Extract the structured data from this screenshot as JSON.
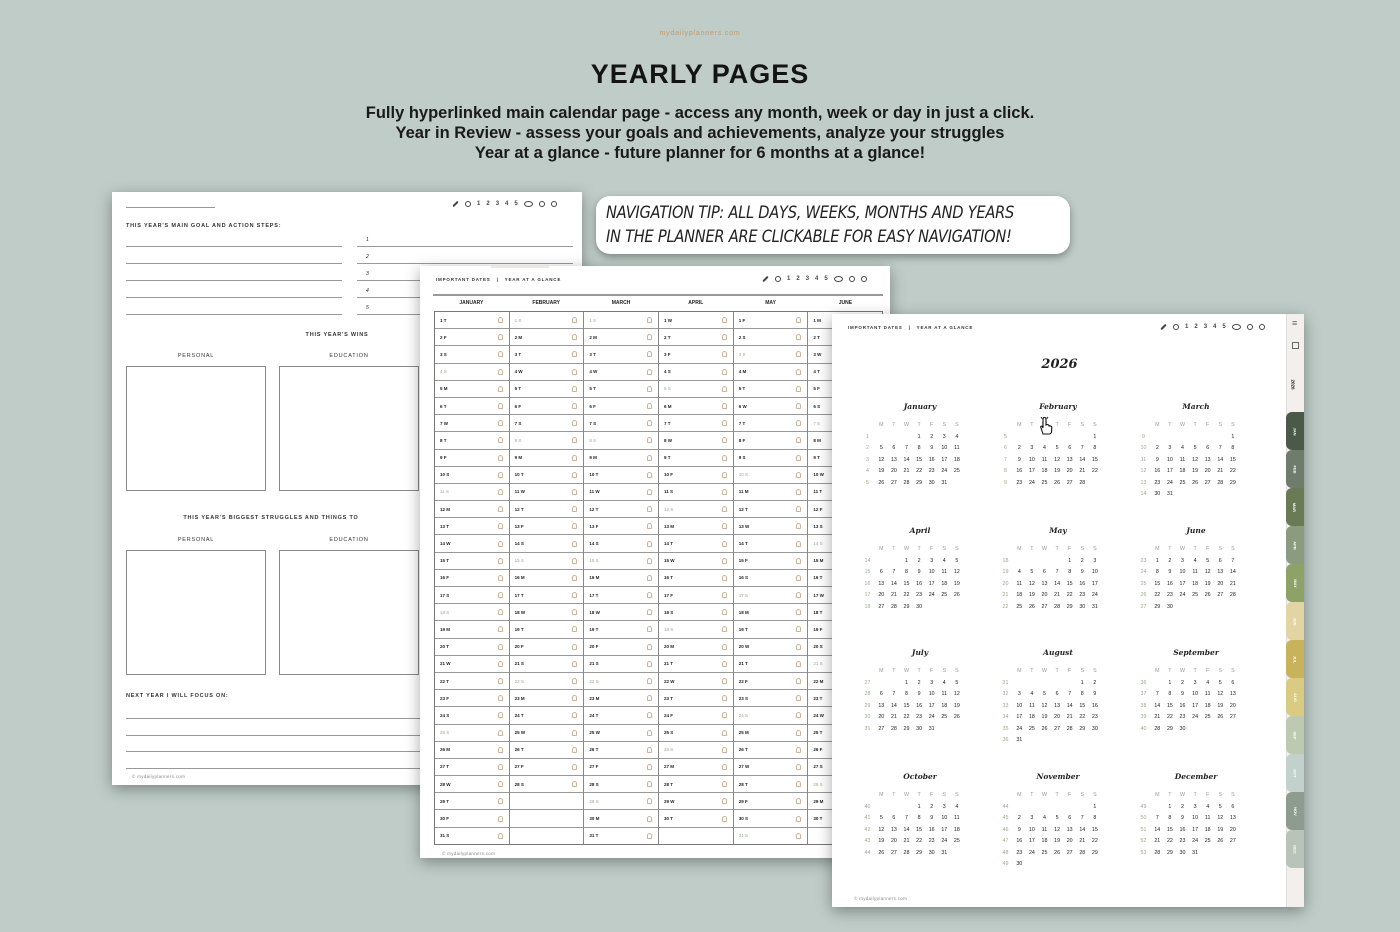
{
  "watermark": "mydailyplanners.com",
  "title": "YEARLY PAGES",
  "subtitle_lines": [
    "Fully hyperlinked main calendar page - access any month, week or day in just a click.",
    "Year in Review - assess your goals and achievements, analyze your struggles",
    "Year at a glance - future planner for 6 months at a glance!"
  ],
  "tip": {
    "line1": "NAVIGATION TIP: ALL DAYS, WEEKS, MONTHS AND YEARS",
    "line2": "IN THE PLANNER ARE CLICKABLE FOR EASY  NAVIGATION!"
  },
  "nav_numbers": [
    "1",
    "2",
    "3",
    "4",
    "5"
  ],
  "nav_icons": [
    "pencil-icon",
    "check-circle-icon",
    "eye-icon",
    "gear-icon",
    "info-icon"
  ],
  "footer": "© mydailyplanners.com",
  "review_page": {
    "goal_heading": "THIS YEAR'S MAIN GOAL AND ACTION STEPS:",
    "steps": [
      "1",
      "2",
      "3",
      "4",
      "5"
    ],
    "wins_heading": "THIS YEAR'S WINS",
    "personal": "PERSONAL",
    "education": "EDUCATION",
    "struggles_heading": "THIS YEAR'S BIGGEST STRUGGLES AND THINGS TO",
    "focus_heading": "NEXT YEAR I WILL FOCUS ON:"
  },
  "dates_page": {
    "breadcrumb": [
      "IMPORTANT DATES",
      "|",
      "YEAR AT A GLANCE"
    ],
    "columns": [
      {
        "month": "JANUARY",
        "days": [
          "1 T",
          "2 F",
          "3 S",
          "4 S",
          "5 M",
          "6 T",
          "7 W",
          "8 T",
          "9 F",
          "10 S",
          "11 S",
          "12 M",
          "13 T",
          "14 W",
          "15 T",
          "16 F",
          "17 S",
          "18 S",
          "19 M",
          "20 T",
          "21 W",
          "22 T",
          "23 F",
          "24 S",
          "25 S",
          "26 M",
          "27 T",
          "28 W",
          "29 T",
          "30 F",
          "31 S"
        ]
      },
      {
        "month": "FEBRUARY",
        "days": [
          "1 S",
          "2 M",
          "3 T",
          "4 W",
          "5 T",
          "6 F",
          "7 S",
          "8 S",
          "9 M",
          "10 T",
          "11 W",
          "12 T",
          "13 F",
          "14 S",
          "15 S",
          "16 M",
          "17 T",
          "18 W",
          "19 T",
          "20 F",
          "21 S",
          "22 S",
          "23 M",
          "24 T",
          "25 W",
          "26 T",
          "27 F",
          "28 S"
        ]
      },
      {
        "month": "MARCH",
        "days": [
          "1 S",
          "2 M",
          "3 T",
          "4 W",
          "5 T",
          "6 F",
          "7 S",
          "8 S",
          "9 M",
          "10 T",
          "11 W",
          "12 T",
          "13 F",
          "14 S",
          "15 S",
          "16 M",
          "17 T",
          "18 W",
          "19 T",
          "20 F",
          "21 S",
          "22 S",
          "23 M",
          "24 T",
          "25 W",
          "26 T",
          "27 F",
          "28 S",
          "29 S",
          "30 M",
          "31 T"
        ]
      },
      {
        "month": "APRIL",
        "days": [
          "1 W",
          "2 T",
          "3 F",
          "4 S",
          "5 S",
          "6 M",
          "7 T",
          "8 W",
          "9 T",
          "10 F",
          "11 S",
          "12 S",
          "13 M",
          "14 T",
          "15 W",
          "16 T",
          "17 F",
          "18 S",
          "19 S",
          "20 M",
          "21 T",
          "22 W",
          "23 T",
          "24 F",
          "25 S",
          "26 S",
          "27 M",
          "28 T",
          "29 W",
          "30 T"
        ]
      },
      {
        "month": "MAY",
        "days": [
          "1 F",
          "2 S",
          "3 S",
          "4 M",
          "5 T",
          "6 W",
          "7 T",
          "8 F",
          "9 S",
          "10 S",
          "11 M",
          "12 T",
          "13 W",
          "14 T",
          "15 F",
          "16 S",
          "17 S",
          "18 M",
          "19 T",
          "20 W",
          "21 T",
          "22 F",
          "23 S",
          "24 S",
          "25 M",
          "26 T",
          "27 W",
          "28 T",
          "29 F",
          "30 S",
          "31 S"
        ]
      },
      {
        "month": "JUNE",
        "days": [
          "1 M",
          "2 T",
          "3 W",
          "4 T",
          "5 F",
          "6 S",
          "7 S",
          "8 M",
          "9 T",
          "10 W",
          "11 T",
          "12 F",
          "13 S",
          "14 S",
          "15 M",
          "16 T",
          "17 W",
          "18 T",
          "19 F",
          "20 S",
          "21 S",
          "22 M",
          "23 T",
          "24 W",
          "25 T",
          "26 F",
          "27 S",
          "28 S",
          "29 M",
          "30 T"
        ]
      }
    ]
  },
  "glance_page": {
    "breadcrumb": [
      "IMPORTANT DATES",
      "|",
      "YEAR AT A GLANCE"
    ],
    "year": "2026",
    "weekday_labels": [
      "M",
      "T",
      "W",
      "T",
      "F",
      "S",
      "S"
    ],
    "months": [
      {
        "name": "January",
        "weeks": [
          [
            "1",
            "",
            "",
            "",
            "1",
            "2",
            "3",
            "4"
          ],
          [
            "2",
            "5",
            "6",
            "7",
            "8",
            "9",
            "10",
            "11"
          ],
          [
            "3",
            "12",
            "13",
            "14",
            "15",
            "16",
            "17",
            "18"
          ],
          [
            "4",
            "19",
            "20",
            "21",
            "22",
            "23",
            "24",
            "25"
          ],
          [
            "5",
            "26",
            "27",
            "28",
            "29",
            "30",
            "31",
            ""
          ]
        ]
      },
      {
        "name": "February",
        "weeks": [
          [
            "5",
            "",
            "",
            "",
            "",
            "",
            "",
            "1"
          ],
          [
            "6",
            "2",
            "3",
            "4",
            "5",
            "6",
            "7",
            "8"
          ],
          [
            "7",
            "9",
            "10",
            "11",
            "12",
            "13",
            "14",
            "15"
          ],
          [
            "8",
            "16",
            "17",
            "18",
            "19",
            "20",
            "21",
            "22"
          ],
          [
            "9",
            "23",
            "24",
            "25",
            "26",
            "27",
            "28",
            ""
          ]
        ]
      },
      {
        "name": "March",
        "weeks": [
          [
            "9",
            "",
            "",
            "",
            "",
            "",
            "",
            "1"
          ],
          [
            "10",
            "2",
            "3",
            "4",
            "5",
            "6",
            "7",
            "8"
          ],
          [
            "11",
            "9",
            "10",
            "11",
            "12",
            "13",
            "14",
            "15"
          ],
          [
            "12",
            "16",
            "17",
            "18",
            "19",
            "20",
            "21",
            "22"
          ],
          [
            "13",
            "23",
            "24",
            "25",
            "26",
            "27",
            "28",
            "29"
          ],
          [
            "14",
            "30",
            "31",
            "",
            "",
            "",
            "",
            ""
          ]
        ]
      },
      {
        "name": "April",
        "weeks": [
          [
            "14",
            "",
            "",
            "1",
            "2",
            "3",
            "4",
            "5"
          ],
          [
            "15",
            "6",
            "7",
            "8",
            "9",
            "10",
            "11",
            "12"
          ],
          [
            "16",
            "13",
            "14",
            "15",
            "16",
            "17",
            "18",
            "19"
          ],
          [
            "17",
            "20",
            "21",
            "22",
            "23",
            "24",
            "25",
            "26"
          ],
          [
            "18",
            "27",
            "28",
            "29",
            "30",
            "",
            "",
            ""
          ]
        ]
      },
      {
        "name": "May",
        "weeks": [
          [
            "18",
            "",
            "",
            "",
            "",
            "1",
            "2",
            "3"
          ],
          [
            "19",
            "4",
            "5",
            "6",
            "7",
            "8",
            "9",
            "10"
          ],
          [
            "20",
            "11",
            "12",
            "13",
            "14",
            "15",
            "16",
            "17"
          ],
          [
            "21",
            "18",
            "19",
            "20",
            "21",
            "22",
            "23",
            "24"
          ],
          [
            "22",
            "25",
            "26",
            "27",
            "28",
            "29",
            "30",
            "31"
          ]
        ]
      },
      {
        "name": "June",
        "weeks": [
          [
            "23",
            "1",
            "2",
            "3",
            "4",
            "5",
            "6",
            "7"
          ],
          [
            "24",
            "8",
            "9",
            "10",
            "11",
            "12",
            "13",
            "14"
          ],
          [
            "25",
            "15",
            "16",
            "17",
            "18",
            "19",
            "20",
            "21"
          ],
          [
            "26",
            "22",
            "23",
            "24",
            "25",
            "26",
            "27",
            "28"
          ],
          [
            "27",
            "29",
            "30",
            "",
            "",
            "",
            "",
            ""
          ]
        ]
      },
      {
        "name": "July",
        "weeks": [
          [
            "27",
            "",
            "",
            "1",
            "2",
            "3",
            "4",
            "5"
          ],
          [
            "28",
            "6",
            "7",
            "8",
            "9",
            "10",
            "11",
            "12"
          ],
          [
            "29",
            "13",
            "14",
            "15",
            "16",
            "17",
            "18",
            "19"
          ],
          [
            "30",
            "20",
            "21",
            "22",
            "23",
            "24",
            "25",
            "26"
          ],
          [
            "31",
            "27",
            "28",
            "29",
            "30",
            "31",
            "",
            ""
          ]
        ]
      },
      {
        "name": "August",
        "weeks": [
          [
            "31",
            "",
            "",
            "",
            "",
            "",
            "1",
            "2"
          ],
          [
            "32",
            "3",
            "4",
            "5",
            "6",
            "7",
            "8",
            "9"
          ],
          [
            "33",
            "10",
            "11",
            "12",
            "13",
            "14",
            "15",
            "16"
          ],
          [
            "34",
            "17",
            "18",
            "19",
            "20",
            "21",
            "22",
            "23"
          ],
          [
            "35",
            "24",
            "25",
            "26",
            "27",
            "28",
            "29",
            "30"
          ],
          [
            "36",
            "31",
            "",
            "",
            "",
            "",
            "",
            ""
          ]
        ]
      },
      {
        "name": "September",
        "weeks": [
          [
            "36",
            "",
            "1",
            "2",
            "3",
            "4",
            "5",
            "6"
          ],
          [
            "37",
            "7",
            "8",
            "9",
            "10",
            "11",
            "12",
            "13"
          ],
          [
            "38",
            "14",
            "15",
            "16",
            "17",
            "18",
            "19",
            "20"
          ],
          [
            "39",
            "21",
            "22",
            "23",
            "24",
            "25",
            "26",
            "27"
          ],
          [
            "40",
            "28",
            "29",
            "30",
            "",
            "",
            "",
            ""
          ]
        ]
      },
      {
        "name": "October",
        "weeks": [
          [
            "40",
            "",
            "",
            "",
            "1",
            "2",
            "3",
            "4"
          ],
          [
            "41",
            "5",
            "6",
            "7",
            "8",
            "9",
            "10",
            "11"
          ],
          [
            "42",
            "12",
            "13",
            "14",
            "15",
            "16",
            "17",
            "18"
          ],
          [
            "43",
            "19",
            "20",
            "21",
            "22",
            "23",
            "24",
            "25"
          ],
          [
            "44",
            "26",
            "27",
            "28",
            "29",
            "30",
            "31",
            ""
          ]
        ]
      },
      {
        "name": "November",
        "weeks": [
          [
            "44",
            "",
            "",
            "",
            "",
            "",
            "",
            "1"
          ],
          [
            "45",
            "2",
            "3",
            "4",
            "5",
            "6",
            "7",
            "8"
          ],
          [
            "46",
            "9",
            "10",
            "11",
            "12",
            "13",
            "14",
            "15"
          ],
          [
            "47",
            "16",
            "17",
            "18",
            "19",
            "20",
            "21",
            "22"
          ],
          [
            "48",
            "23",
            "24",
            "25",
            "26",
            "27",
            "28",
            "29"
          ],
          [
            "49",
            "30",
            "",
            "",
            "",
            "",
            "",
            ""
          ]
        ]
      },
      {
        "name": "December",
        "weeks": [
          [
            "49",
            "",
            "1",
            "2",
            "3",
            "4",
            "5",
            "6"
          ],
          [
            "50",
            "7",
            "8",
            "9",
            "10",
            "11",
            "12",
            "13"
          ],
          [
            "51",
            "14",
            "15",
            "16",
            "17",
            "18",
            "19",
            "20"
          ],
          [
            "52",
            "21",
            "22",
            "23",
            "24",
            "25",
            "26",
            "27"
          ],
          [
            "53",
            "28",
            "29",
            "30",
            "31",
            "",
            "",
            ""
          ]
        ]
      }
    ]
  },
  "tabs": {
    "year": "2026",
    "months": [
      {
        "label": "JAN",
        "color": "#4b5a48"
      },
      {
        "label": "FEB",
        "color": "#6f7c6b"
      },
      {
        "label": "MAR",
        "color": "#687b54"
      },
      {
        "label": "APR",
        "color": "#8b9b80"
      },
      {
        "label": "MAY",
        "color": "#8ea268"
      },
      {
        "label": "JUN",
        "color": "#e2d5a3"
      },
      {
        "label": "JUL",
        "color": "#c8b25c"
      },
      {
        "label": "AUG",
        "color": "#dacb82"
      },
      {
        "label": "SEP",
        "color": "#bdcab1"
      },
      {
        "label": "OCT",
        "color": "#c3d1cd"
      },
      {
        "label": "NOV",
        "color": "#8e9c90"
      },
      {
        "label": "DEC",
        "color": "#b9c3b8"
      }
    ]
  }
}
